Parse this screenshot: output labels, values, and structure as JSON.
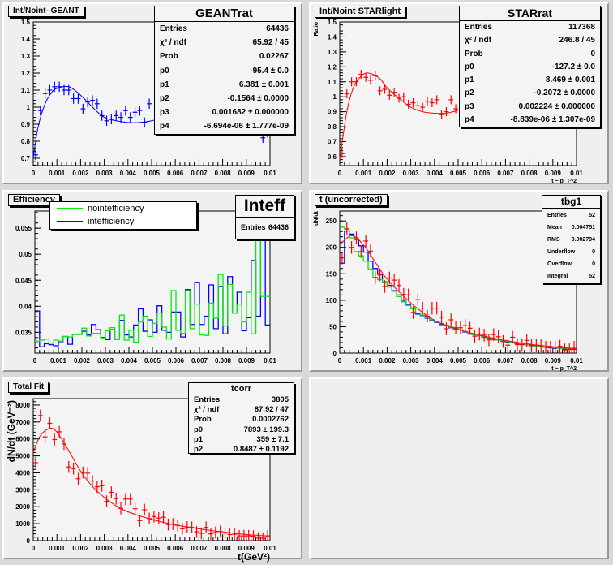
{
  "chart_data": [
    {
      "type": "scatter",
      "title": "Int/Noint- GEANT",
      "xlim": [
        0,
        0.01
      ],
      "ylim": [
        0.657,
        1.5
      ],
      "xticks": [
        "0",
        "0.001",
        "0.002",
        "0.003",
        "0.004",
        "0.005",
        "0.006",
        "0.007",
        "0.008",
        "0.009",
        "0.01"
      ],
      "yticks": [
        0.7,
        0.8,
        0.9,
        1.0,
        1.1,
        1.2,
        1.3,
        1.4,
        1.5
      ],
      "ytick_labels": [
        "0.7",
        "0.8",
        "0.9",
        "1",
        "1.1",
        "1.2",
        "1.3",
        "1.4",
        "1.5"
      ],
      "xlabel": "",
      "ylabel": "",
      "series": [
        {
          "kind": "points",
          "color": "#0000ff",
          "yerr": 0.03,
          "x": [
            0.0001,
            0.0003,
            0.0005,
            0.0007,
            0.0009,
            0.0011,
            0.0013,
            0.0015,
            0.0017,
            0.0019,
            0.0021,
            0.0023,
            0.0025,
            0.0027,
            0.0029,
            0.0031,
            0.0033,
            0.0035,
            0.0037,
            0.0039,
            0.0041,
            0.0043,
            0.0045,
            0.0047,
            0.0049,
            0.0097,
            0.0099
          ],
          "y": [
            0.72,
            0.98,
            1.08,
            1.1,
            1.12,
            1.12,
            1.1,
            1.1,
            1.05,
            1.05,
            0.99,
            1.03,
            1.04,
            1.02,
            0.95,
            0.92,
            0.93,
            0.95,
            0.94,
            0.98,
            0.94,
            0.97,
            0.98,
            0.91,
            1.02,
            0.82,
            0.85
          ]
        },
        {
          "kind": "curve",
          "color": "#0000ff",
          "x": [
            0,
            0.0002,
            0.0005,
            0.0008,
            0.001,
            0.0015,
            0.002,
            0.0025,
            0.003,
            0.0035,
            0.004,
            0.0045,
            0.005,
            0.0055
          ],
          "y": [
            0.7,
            0.88,
            1.02,
            1.09,
            1.11,
            1.12,
            1.07,
            1.0,
            0.94,
            0.92,
            0.91,
            0.91,
            0.92,
            0.94
          ]
        }
      ],
      "stats": {
        "title": "GEANTrat",
        "rows": [
          [
            "Entries",
            "64436"
          ],
          [
            "χ² / ndf",
            "65.92 / 45"
          ],
          [
            "Prob",
            "0.02267"
          ],
          [
            "p0",
            "-95.4 ± 0.0"
          ],
          [
            "p1",
            "6.381 ± 0.001"
          ],
          [
            "p2",
            "-0.1564 ± 0.0000"
          ],
          [
            "p3",
            "0.001682 ± 0.000000"
          ],
          [
            "p4",
            "-6.694e-06 ± 1.777e-09"
          ]
        ]
      }
    },
    {
      "type": "scatter",
      "title": "Int/Noint STARlight",
      "xlim": [
        0,
        0.01
      ],
      "ylim": [
        0.54,
        1.5
      ],
      "xticks": [
        "0",
        "0.001",
        "0.002",
        "0.003",
        "0.004",
        "0.005",
        "0.006",
        "0.007",
        "0.008",
        "0.009",
        "0.01"
      ],
      "yticks": [
        0.6,
        0.7,
        0.8,
        0.9,
        1.0,
        1.1,
        1.2,
        1.3,
        1.4,
        1.5
      ],
      "ytick_labels": [
        "0.6",
        "0.7",
        "0.8",
        "0.9",
        "1",
        "1.1",
        "1.2",
        "1.3",
        "1.4",
        "1.5"
      ],
      "xlabel": "t ~ p_T^2",
      "ylabel": "Ratio",
      "series": [
        {
          "kind": "points",
          "color": "#ff0000",
          "yerr": 0.03,
          "x": [
            0.0001,
            0.0003,
            0.0005,
            0.0007,
            0.0009,
            0.0011,
            0.0013,
            0.0015,
            0.0017,
            0.0019,
            0.0021,
            0.0023,
            0.0025,
            0.0027,
            0.0029,
            0.0031,
            0.0033,
            0.0035,
            0.0037,
            0.0039,
            0.0041,
            0.0043,
            0.0045,
            0.0047,
            0.0049
          ],
          "y": [
            0.62,
            1.02,
            1.1,
            1.1,
            1.15,
            1.13,
            1.11,
            1.14,
            1.04,
            1.05,
            1.01,
            1.03,
            0.99,
            1.0,
            0.95,
            0.96,
            0.94,
            0.93,
            0.97,
            0.96,
            0.98,
            0.88,
            0.9,
            0.98,
            0.92
          ]
        },
        {
          "kind": "curve",
          "color": "#ff0000",
          "x": [
            0,
            0.0003,
            0.0006,
            0.001,
            0.0013,
            0.0017,
            0.002,
            0.0025,
            0.003,
            0.0035,
            0.004,
            0.0045,
            0.005,
            0.0055
          ],
          "y": [
            0.58,
            0.9,
            1.07,
            1.15,
            1.155,
            1.12,
            1.06,
            0.99,
            0.93,
            0.9,
            0.89,
            0.89,
            0.91,
            0.94
          ]
        }
      ],
      "stats": {
        "title": "STARrat",
        "rows": [
          [
            "Entries",
            "117368"
          ],
          [
            "χ² / ndf",
            "246.8 / 45"
          ],
          [
            "Prob",
            "0"
          ],
          [
            "p0",
            "-127.2 ± 0.0"
          ],
          [
            "p1",
            "8.469 ± 0.001"
          ],
          [
            "p2",
            "-0.2072 ± 0.0000"
          ],
          [
            "p3",
            "0.002224 ± 0.000000"
          ],
          [
            "p4",
            "-8.839e-06 ± 1.307e-09"
          ]
        ]
      }
    },
    {
      "type": "bar",
      "title": "Efficiency",
      "xlim": [
        0,
        0.01
      ],
      "ylim": [
        0.031,
        0.0583
      ],
      "xticks": [
        "0",
        "0.001",
        "0.002",
        "0.003",
        "0.004",
        "0.005",
        "0.006",
        "0.007",
        "0.008",
        "0.009",
        "0.01"
      ],
      "yticks": [
        0.035,
        0.04,
        0.045,
        0.05,
        0.055
      ],
      "ytick_labels": [
        "0.035",
        "0.04",
        "0.045",
        "0.05",
        "0.055"
      ],
      "xlabel": "",
      "ylabel": "",
      "series": [
        {
          "kind": "hist",
          "name": "intefficiency",
          "color": "#0000ff",
          "values": [
            0.0391,
            0.0322,
            0.0328,
            0.0326,
            0.0324,
            0.0332,
            0.0342,
            0.0327,
            0.0346,
            0.0346,
            0.0352,
            0.0345,
            0.0365,
            0.0355,
            0.034,
            0.0336,
            0.0355,
            0.0336,
            0.0373,
            0.0345,
            0.0341,
            0.0364,
            0.0395,
            0.0352,
            0.0374,
            0.035,
            0.0401,
            0.0354,
            0.035,
            0.0389,
            0.0389,
            0.0341,
            0.0432,
            0.0365,
            0.0446,
            0.0365,
            0.0381,
            0.0441,
            0.0357,
            0.0438,
            0.0347,
            0.0457,
            0.0387,
            0.0427,
            0.0353,
            0.0378,
            0.0488,
            0.0381,
            0.0578,
            0.0364
          ]
        },
        {
          "kind": "hist",
          "name": "nointefficiency",
          "color": "#00ee00",
          "values": [
            0.0333,
            0.0335,
            0.0337,
            0.0329,
            0.0335,
            0.0333,
            0.0342,
            0.0341,
            0.0346,
            0.0346,
            0.0358,
            0.0343,
            0.0348,
            0.0348,
            0.0339,
            0.0353,
            0.0359,
            0.0336,
            0.0383,
            0.0335,
            0.0354,
            0.0331,
            0.037,
            0.0381,
            0.0342,
            0.0367,
            0.0387,
            0.036,
            0.0337,
            0.043,
            0.0354,
            0.0348,
            0.043,
            0.0357,
            0.0404,
            0.0345,
            0.0344,
            0.0406,
            0.0377,
            0.0461,
            0.0362,
            0.0442,
            0.0387,
            0.0404,
            0.037,
            0.0427,
            0.0347,
            0.0578,
            0.0419,
            0.0419
          ]
        }
      ],
      "legend": [
        {
          "label": "nointefficiency",
          "color": "#00ee00"
        },
        {
          "label": "intefficiency",
          "color": "#0000ff"
        }
      ],
      "stats": {
        "title": "Inteff",
        "rows": [
          [
            "Entries",
            "64436"
          ]
        ]
      }
    },
    {
      "type": "bar",
      "title": "t (uncorrected)",
      "xlim": [
        0,
        0.01
      ],
      "ylim": [
        0,
        268.7
      ],
      "xticks": [
        "0",
        "0.001",
        "0.002",
        "0.003",
        "0.004",
        "0.005",
        "0.006",
        "0.007",
        "0.008",
        "0.009",
        "0.01"
      ],
      "yticks": [
        0,
        50,
        100,
        150,
        200,
        250
      ],
      "ytick_labels": [
        "0",
        "50",
        "100",
        "150",
        "200",
        "250"
      ],
      "xlabel": "t ~ p_T^2",
      "ylabel": "dN/dt",
      "series": [
        {
          "kind": "hist",
          "color": "#0000ff",
          "values": [
            170,
            231,
            225,
            215,
            203,
            191,
            174,
            160,
            149,
            135,
            128,
            118,
            110,
            98,
            91,
            85,
            74,
            71,
            66,
            62,
            58,
            54,
            52,
            48,
            46,
            44,
            40,
            36,
            35,
            33,
            30,
            28,
            26,
            25,
            23,
            21,
            20,
            18,
            17,
            16,
            14,
            13,
            12,
            11,
            10,
            9,
            9,
            8,
            8,
            7
          ]
        },
        {
          "kind": "hist",
          "color": "#00ee00",
          "values": [
            238,
            235,
            218,
            192,
            184,
            174,
            159,
            143,
            139,
            135,
            125,
            117,
            107,
            97,
            90,
            84,
            76,
            72,
            67,
            63,
            59,
            56,
            53,
            49,
            47,
            44,
            41,
            37,
            35,
            33,
            31,
            29,
            27,
            25,
            23,
            22,
            20,
            19,
            17,
            16,
            15,
            13,
            12,
            11,
            11,
            10,
            9,
            9,
            8,
            8
          ]
        },
        {
          "kind": "points",
          "color": "#ff0000",
          "yerr": 12,
          "x": [
            0.0001,
            0.0003,
            0.0005,
            0.0007,
            0.0009,
            0.0011,
            0.0013,
            0.0015,
            0.0017,
            0.0019,
            0.0021,
            0.0023,
            0.0025,
            0.0027,
            0.0029,
            0.0031,
            0.0033,
            0.0035,
            0.0037,
            0.0039,
            0.0041,
            0.0043,
            0.0045,
            0.0047,
            0.0049,
            0.0051,
            0.0053,
            0.0055,
            0.0057,
            0.0059,
            0.0061,
            0.0063,
            0.0065,
            0.0067,
            0.0069,
            0.0071,
            0.0073,
            0.0075,
            0.0077,
            0.0079,
            0.0081,
            0.0083,
            0.0085,
            0.0087,
            0.0089,
            0.0091,
            0.0093,
            0.0095,
            0.0097,
            0.0099
          ],
          "y": [
            180,
            235,
            200,
            218,
            192,
            212,
            193,
            143,
            148,
            126,
            142,
            138,
            128,
            111,
            110,
            77,
            101,
            85,
            70,
            85,
            85,
            68,
            46,
            63,
            48,
            48,
            52,
            47,
            32,
            36,
            34,
            25,
            35,
            31,
            22,
            15,
            30,
            16,
            16,
            24,
            15,
            15,
            14,
            11,
            11,
            11,
            13,
            6,
            7,
            11
          ]
        },
        {
          "kind": "curve",
          "color": "#ff0000",
          "x": [
            0,
            0.0005,
            0.001,
            0.0015,
            0.002,
            0.003,
            0.004,
            0.005,
            0.006,
            0.007,
            0.008,
            0.009,
            0.01
          ],
          "y": [
            205,
            222,
            205,
            172,
            140,
            95,
            62,
            45,
            33,
            24,
            17,
            12,
            8
          ]
        }
      ],
      "stats": {
        "title": "tbg1",
        "rows": [
          [
            "Entries",
            "52"
          ],
          [
            "Mean",
            "0.004751"
          ],
          [
            "RMS",
            "0.002794"
          ],
          [
            "Underflow",
            "0"
          ],
          [
            "Overflow",
            "0"
          ],
          [
            "Integral",
            "52"
          ]
        ]
      }
    },
    {
      "type": "scatter",
      "title": "Total Fit",
      "xlim": [
        0,
        0.01
      ],
      "ylim": [
        0,
        8380
      ],
      "xticks": [
        "0",
        "0.001",
        "0.002",
        "0.003",
        "0.004",
        "0.005",
        "0.006",
        "0.007",
        "0.008",
        "0.009",
        "0.01"
      ],
      "yticks": [
        0,
        1000,
        2000,
        3000,
        4000,
        5000,
        6000,
        7000,
        8000
      ],
      "ytick_labels": [
        "0",
        "1000",
        "2000",
        "3000",
        "4000",
        "5000",
        "6000",
        "7000",
        "8000"
      ],
      "xlabel": "t(GeV²)",
      "ylabel": "dN/dt (GeV⁻²)",
      "series": [
        {
          "kind": "points",
          "color": "#ff0000",
          "yerr": 350,
          "x": [
            0.0001,
            0.0003,
            0.0005,
            0.0007,
            0.0009,
            0.0011,
            0.0013,
            0.0015,
            0.0017,
            0.0019,
            0.0021,
            0.0023,
            0.0025,
            0.0027,
            0.0029,
            0.0031,
            0.0033,
            0.0035,
            0.0037,
            0.0039,
            0.0041,
            0.0043,
            0.0045,
            0.0047,
            0.0049,
            0.0051,
            0.0053,
            0.0055,
            0.0057,
            0.0059,
            0.0061,
            0.0063,
            0.0065,
            0.0067,
            0.0069,
            0.0071,
            0.0073,
            0.0075,
            0.0077,
            0.0079,
            0.0081,
            0.0083,
            0.0085,
            0.0087,
            0.0089,
            0.0091,
            0.0093,
            0.0095,
            0.0097,
            0.0099
          ],
          "y": [
            4600,
            7380,
            6120,
            6920,
            5960,
            6420,
            5700,
            4350,
            4250,
            3650,
            4020,
            3980,
            3520,
            3180,
            3240,
            2320,
            2850,
            2480,
            1900,
            2450,
            2450,
            1880,
            1180,
            1820,
            1300,
            1420,
            1330,
            1380,
            950,
            980,
            900,
            700,
            800,
            780,
            520,
            430,
            780,
            400,
            480,
            540,
            450,
            360,
            380,
            280,
            280,
            280,
            260,
            150,
            140,
            280
          ]
        },
        {
          "kind": "curve",
          "color": "#ff0000",
          "x": [
            0,
            0.0003,
            0.0007,
            0.001,
            0.0015,
            0.002,
            0.0025,
            0.003,
            0.0035,
            0.004,
            0.005,
            0.006,
            0.007,
            0.008,
            0.009,
            0.01
          ],
          "y": [
            5200,
            6200,
            6620,
            6400,
            5300,
            4100,
            3200,
            2550,
            2050,
            1700,
            1250,
            930,
            700,
            520,
            360,
            270
          ]
        }
      ],
      "stats": {
        "title": "tcorr",
        "rows": [
          [
            "Entries",
            "3805"
          ],
          [
            "χ² / ndf",
            "87.92 / 47"
          ],
          [
            "Prob",
            "0.0002762"
          ],
          [
            "p0",
            "7893 ± 199.3"
          ],
          [
            "p1",
            "359 ± 7.1"
          ],
          [
            "p2",
            "0.8487 ± 0.1192"
          ]
        ]
      }
    }
  ]
}
